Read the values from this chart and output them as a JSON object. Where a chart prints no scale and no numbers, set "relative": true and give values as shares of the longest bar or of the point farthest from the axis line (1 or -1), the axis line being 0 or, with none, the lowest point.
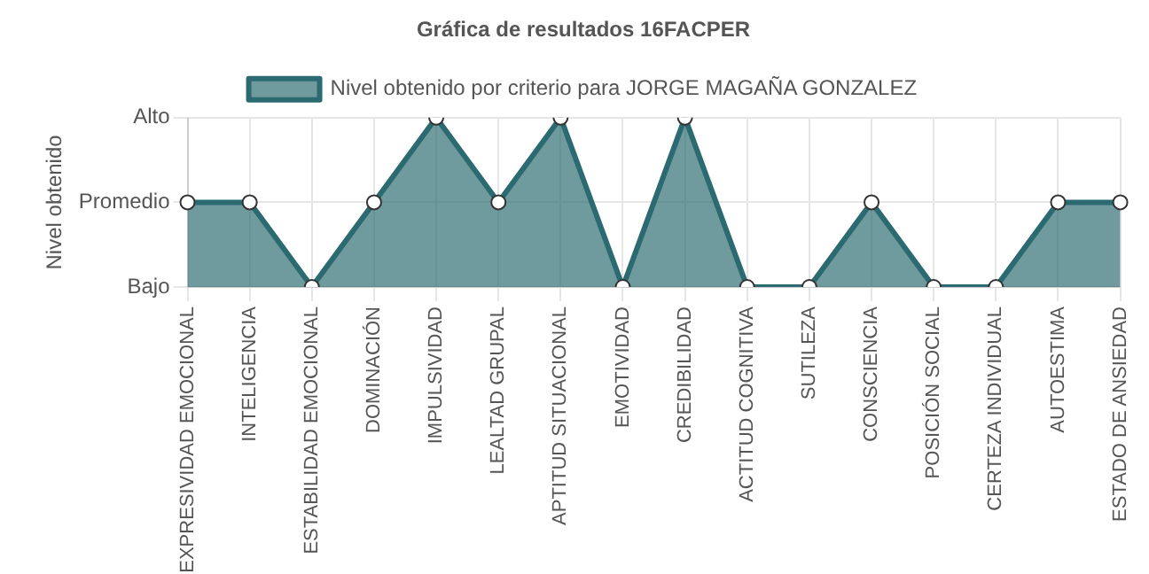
{
  "chart_data": {
    "type": "area",
    "title": "Gráfica de resultados 16FACPER",
    "annotations": [
      "Nivel obtenido"
    ],
    "relative": true,
    "categories": [
      "EXPRESIVIDAD EMOCIONAL",
      "INTELIGENCIA",
      "ESTABILIDAD EMOCIONAL",
      "DOMINACIÓN",
      "IMPULSIVIDAD",
      "LEALTAD GRUPAL",
      "APTITUD SITUACIONAL",
      "EMOTIVIDAD",
      "CREDIBILIDAD",
      "ACTITUD COGNITIVA",
      "SUTILEZA",
      "CONSCIENCIA",
      "POSICIÓN SOCIAL",
      "CERTEZA INDIVIDUAL",
      "AUTOESTIMA",
      "ESTADO DE ANSIEDAD"
    ],
    "y_categories": [
      "Alto",
      "Promedio",
      "Bajo"
    ],
    "series": [
      {
        "name": "Nivel obtenido por criterio para JORGE MAGAÑA GONZALEZ",
        "color": "#2b6a70",
        "values": [
          0.5,
          0.5,
          0,
          0.5,
          1,
          0.5,
          1,
          0,
          1,
          0,
          0,
          0.5,
          0,
          0,
          0.5,
          0.5
        ]
      }
    ],
    "grid": true,
    "legend": "top",
    "marker": "circle"
  }
}
